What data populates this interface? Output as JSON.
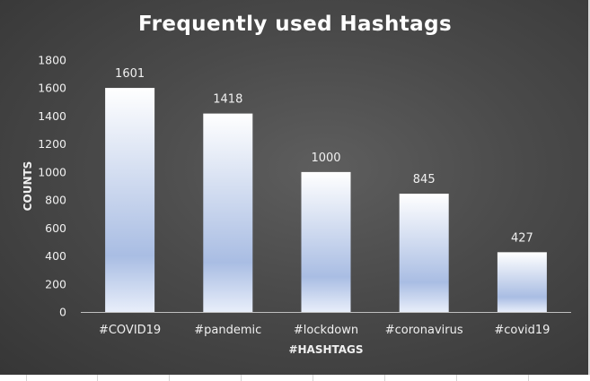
{
  "chart_data": {
    "type": "bar",
    "title": "Frequently used Hashtags",
    "xlabel": "#HASHTAGS",
    "ylabel": "COUNTS",
    "categories": [
      "#COVID19",
      "#pandemic",
      "#lockdown",
      "#coronavirus",
      "#covid19"
    ],
    "values": [
      1601,
      1418,
      1000,
      845,
      427
    ],
    "ylim": [
      0,
      1800
    ],
    "yticks": [
      0,
      200,
      400,
      600,
      800,
      1000,
      1200,
      1400,
      1600,
      1800
    ],
    "grid": false,
    "legend": "none",
    "colors": {
      "background": "#464646",
      "bar_top": "#ffffff",
      "bar_bottom": "#a9bde3",
      "text": "#f0f0f0"
    }
  }
}
